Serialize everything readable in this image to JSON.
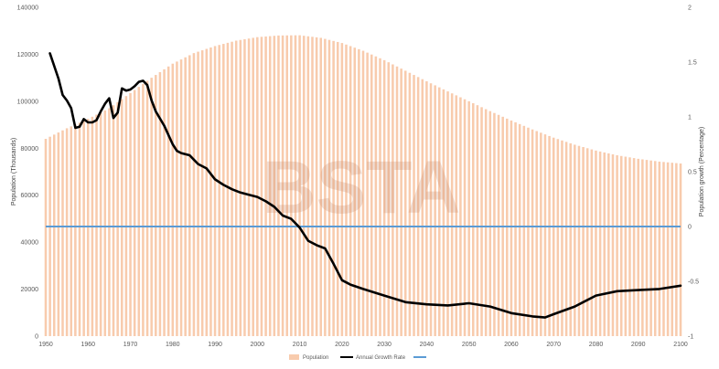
{
  "chart_data": {
    "type": "bar",
    "watermark": "BSTA",
    "ylabel_left": "Population (Thousands)",
    "ylabel_right": "Population growth (Percentage)",
    "ylim_left": [
      0,
      140000
    ],
    "ylim_right": [
      -1,
      2
    ],
    "yticks_left": [
      "0",
      "20000",
      "40000",
      "60000",
      "80000",
      "100000",
      "120000",
      "140000"
    ],
    "yticks_right": [
      "-1",
      "-0.5",
      "0",
      "0.5",
      "1",
      "1.5",
      "2"
    ],
    "xticks": [
      "1950",
      "1960",
      "1970",
      "1980",
      "1990",
      "2000",
      "2010",
      "2020",
      "2030",
      "2040",
      "2050",
      "2060",
      "2070",
      "2080",
      "2090",
      "2100"
    ],
    "xlim": [
      1950,
      2100
    ],
    "colors": {
      "population": "#f8cbad",
      "growth": "#000000",
      "zero_line": "#5b9bd5"
    },
    "legend": {
      "position": "bottom",
      "items": [
        "Population",
        "Annual Growth Rate",
        ""
      ]
    },
    "series": [
      {
        "name": "Population",
        "kind": "bar",
        "axis": "left",
        "x": [
          1950,
          1955,
          1960,
          1965,
          1970,
          1975,
          1980,
          1985,
          1990,
          1995,
          2000,
          2005,
          2010,
          2015,
          2020,
          2025,
          2030,
          2035,
          2040,
          2045,
          2050,
          2055,
          2060,
          2065,
          2070,
          2075,
          2080,
          2085,
          2090,
          2095,
          2100
        ],
        "values": [
          84000,
          88500,
          92500,
          97000,
          103500,
          110000,
          116000,
          120500,
          123500,
          125800,
          127300,
          128000,
          128100,
          127000,
          124800,
          121500,
          117500,
          113000,
          108500,
          104200,
          100000,
          95800,
          91800,
          88000,
          84500,
          81500,
          79000,
          77000,
          75500,
          74300,
          73500
        ]
      },
      {
        "name": "Annual Growth Rate",
        "kind": "line",
        "axis": "right",
        "x": [
          1951,
          1953,
          1954,
          1955,
          1956,
          1957,
          1958,
          1959,
          1960,
          1961,
          1962,
          1963,
          1964,
          1965,
          1966,
          1967,
          1968,
          1969,
          1970,
          1971,
          1972,
          1973,
          1974,
          1975,
          1976,
          1978,
          1980,
          1981,
          1982,
          1984,
          1985,
          1986,
          1988,
          1990,
          1992,
          1994,
          1996,
          1998,
          2000,
          2002,
          2004,
          2006,
          2008,
          2010,
          2012,
          2014,
          2016,
          2018,
          2020,
          2022,
          2025,
          2030,
          2035,
          2040,
          2045,
          2050,
          2055,
          2060,
          2065,
          2068,
          2070,
          2075,
          2080,
          2085,
          2090,
          2095,
          2100
        ],
        "values": [
          1.58,
          1.35,
          1.2,
          1.15,
          1.08,
          0.9,
          0.91,
          0.98,
          0.95,
          0.95,
          0.97,
          1.05,
          1.12,
          1.17,
          0.99,
          1.04,
          1.26,
          1.24,
          1.25,
          1.28,
          1.32,
          1.33,
          1.29,
          1.15,
          1.05,
          0.92,
          0.75,
          0.69,
          0.67,
          0.65,
          0.61,
          0.57,
          0.53,
          0.43,
          0.38,
          0.34,
          0.31,
          0.29,
          0.27,
          0.23,
          0.18,
          0.1,
          0.07,
          -0.01,
          -0.13,
          -0.17,
          -0.2,
          -0.34,
          -0.49,
          -0.53,
          -0.57,
          -0.63,
          -0.69,
          -0.71,
          -0.72,
          -0.7,
          -0.73,
          -0.79,
          -0.82,
          -0.83,
          -0.8,
          -0.73,
          -0.63,
          -0.59,
          -0.58,
          -0.57,
          -0.54
        ]
      },
      {
        "name": "",
        "kind": "line",
        "axis": "right",
        "x": [
          1950,
          2100
        ],
        "values": [
          0,
          0
        ]
      }
    ]
  }
}
